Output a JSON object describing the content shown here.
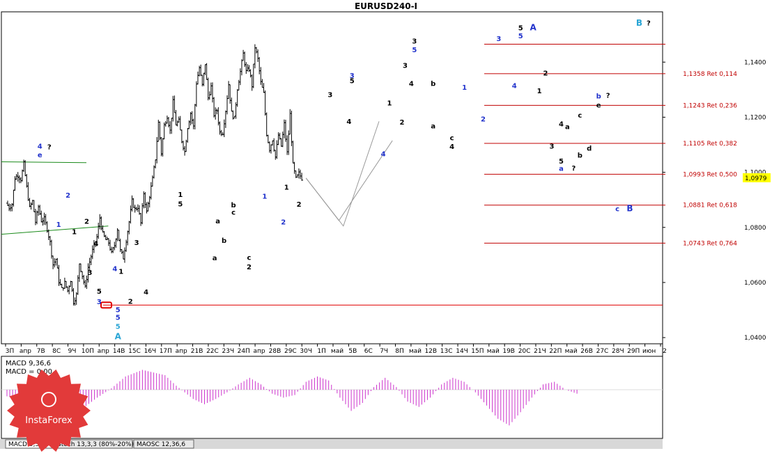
{
  "chart_data": {
    "type": "ohlc",
    "title": "EURUSD240-I",
    "price_axis": {
      "ticks": [
        "1,1400",
        "1,1200",
        "1,1000",
        "1,0800",
        "1,0600",
        "1,0400"
      ],
      "tick_values": [
        1.14,
        1.12,
        1.1,
        1.08,
        1.06,
        1.04
      ],
      "ylim": [
        1.038,
        1.158
      ],
      "current_price": "1,0979",
      "current_value": 1.0979
    },
    "time_axis": {
      "labels": [
        "3П",
        "апр",
        "7В",
        "8С",
        "9Ч",
        "10П",
        "апр",
        "14В",
        "15С",
        "16Ч",
        "17П",
        "апр",
        "21В",
        "22С",
        "23Ч",
        "24П",
        "апр",
        "28В",
        "29С",
        "30Ч",
        "1П",
        "май",
        "5В",
        "6С",
        "7Ч",
        "8П",
        "май",
        "12В",
        "13С",
        "14Ч",
        "15П",
        "май",
        "19В",
        "20С",
        "21Ч",
        "22П",
        "май",
        "26В",
        "27С",
        "28Ч",
        "29П",
        "июн",
        "2"
      ]
    },
    "price_path": [
      {
        "t": 0,
        "p": 1.0888
      },
      {
        "t": 1,
        "p": 1.0872
      },
      {
        "t": 2,
        "p": 1.0885
      },
      {
        "t": 3,
        "p": 1.098
      },
      {
        "t": 4,
        "p": 1.099
      },
      {
        "t": 5,
        "p": 1.0975
      },
      {
        "t": 6,
        "p": 1.103
      },
      {
        "t": 7,
        "p": 1.0945
      },
      {
        "t": 8,
        "p": 1.087
      },
      {
        "t": 9,
        "p": 1.0895
      },
      {
        "t": 10,
        "p": 1.082
      },
      {
        "t": 11,
        "p": 1.0875
      },
      {
        "t": 12,
        "p": 1.0825
      },
      {
        "t": 13,
        "p": 1.083
      },
      {
        "t": 14,
        "p": 1.0795
      },
      {
        "t": 15,
        "p": 1.0745
      },
      {
        "t": 16,
        "p": 1.0665
      },
      {
        "t": 17,
        "p": 1.0685
      },
      {
        "t": 18,
        "p": 1.0605
      },
      {
        "t": 19,
        "p": 1.0575
      },
      {
        "t": 20,
        "p": 1.0598
      },
      {
        "t": 21,
        "p": 1.057
      },
      {
        "t": 22,
        "p": 1.061
      },
      {
        "t": 23,
        "p": 1.053
      },
      {
        "t": 24,
        "p": 1.0555
      },
      {
        "t": 25,
        "p": 1.067
      },
      {
        "t": 26,
        "p": 1.0625
      },
      {
        "t": 27,
        "p": 1.058
      },
      {
        "t": 28,
        "p": 1.0655
      },
      {
        "t": 29,
        "p": 1.0695
      },
      {
        "t": 30,
        "p": 1.0735
      },
      {
        "t": 31,
        "p": 1.0765
      },
      {
        "t": 32,
        "p": 1.0835
      },
      {
        "t": 33,
        "p": 1.0775
      },
      {
        "t": 34,
        "p": 1.0755
      },
      {
        "t": 35,
        "p": 1.0745
      },
      {
        "t": 36,
        "p": 1.0705
      },
      {
        "t": 37,
        "p": 1.0735
      },
      {
        "t": 38,
        "p": 1.0795
      },
      {
        "t": 39,
        "p": 1.0715
      },
      {
        "t": 40,
        "p": 1.069
      },
      {
        "t": 41,
        "p": 1.0755
      },
      {
        "t": 42,
        "p": 1.082
      },
      {
        "t": 43,
        "p": 1.0895
      },
      {
        "t": 44,
        "p": 1.0865
      },
      {
        "t": 45,
        "p": 1.0875
      },
      {
        "t": 46,
        "p": 1.0815
      },
      {
        "t": 47,
        "p": 1.0925
      },
      {
        "t": 48,
        "p": 1.0855
      },
      {
        "t": 49,
        "p": 1.0915
      },
      {
        "t": 50,
        "p": 1.0975
      },
      {
        "t": 51,
        "p": 1.105
      },
      {
        "t": 52,
        "p": 1.118
      },
      {
        "t": 53,
        "p": 1.107
      },
      {
        "t": 54,
        "p": 1.117
      },
      {
        "t": 55,
        "p": 1.1205
      },
      {
        "t": 56,
        "p": 1.115
      },
      {
        "t": 57,
        "p": 1.1255
      },
      {
        "t": 58,
        "p": 1.1175
      },
      {
        "t": 59,
        "p": 1.1185
      },
      {
        "t": 60,
        "p": 1.1115
      },
      {
        "t": 61,
        "p": 1.1075
      },
      {
        "t": 62,
        "p": 1.1165
      },
      {
        "t": 63,
        "p": 1.1215
      },
      {
        "t": 64,
        "p": 1.1165
      },
      {
        "t": 65,
        "p": 1.1325
      },
      {
        "t": 66,
        "p": 1.138
      },
      {
        "t": 67,
        "p": 1.1315
      },
      {
        "t": 68,
        "p": 1.1395
      },
      {
        "t": 69,
        "p": 1.127
      },
      {
        "t": 70,
        "p": 1.131
      },
      {
        "t": 71,
        "p": 1.121
      },
      {
        "t": 72,
        "p": 1.1225
      },
      {
        "t": 73,
        "p": 1.1145
      },
      {
        "t": 74,
        "p": 1.1145
      },
      {
        "t": 75,
        "p": 1.1225
      },
      {
        "t": 76,
        "p": 1.132
      },
      {
        "t": 77,
        "p": 1.1215
      },
      {
        "t": 78,
        "p": 1.1195
      },
      {
        "t": 79,
        "p": 1.1305
      },
      {
        "t": 80,
        "p": 1.1365
      },
      {
        "t": 81,
        "p": 1.143
      },
      {
        "t": 82,
        "p": 1.1365
      },
      {
        "t": 83,
        "p": 1.1375
      },
      {
        "t": 84,
        "p": 1.1315
      },
      {
        "t": 85,
        "p": 1.1455
      },
      {
        "t": 86,
        "p": 1.141
      },
      {
        "t": 87,
        "p": 1.1325
      },
      {
        "t": 88,
        "p": 1.1285
      },
      {
        "t": 89,
        "p": 1.114
      },
      {
        "t": 90,
        "p": 1.1085
      },
      {
        "t": 91,
        "p": 1.112
      },
      {
        "t": 92,
        "p": 1.1055
      },
      {
        "t": 93,
        "p": 1.1135
      },
      {
        "t": 94,
        "p": 1.1095
      },
      {
        "t": 95,
        "p": 1.1175
      },
      {
        "t": 96,
        "p": 1.107
      },
      {
        "t": 97,
        "p": 1.121
      },
      {
        "t": 98,
        "p": 1.1025
      },
      {
        "t": 99,
        "p": 1.0975
      },
      {
        "t": 100,
        "p": 1.0995
      },
      {
        "t": 101,
        "p": 1.0979
      }
    ],
    "fib_levels": [
      {
        "label": "",
        "value": 1.1465
      },
      {
        "label": "1,1358 Ret 0,114",
        "value": 1.1358
      },
      {
        "label": "1,1243 Ret 0,236",
        "value": 1.1243
      },
      {
        "label": "1,1105 Ret 0,382",
        "value": 1.1105
      },
      {
        "label": "1,0993 Ret 0,500",
        "value": 1.0993
      },
      {
        "label": "1,0881 Ret 0,618",
        "value": 1.0881
      },
      {
        "label": "1,0743 Ret 0,764",
        "value": 1.0743
      }
    ],
    "support_level": 1.0518,
    "forecast_paths": [
      [
        {
          "t": 101,
          "p": 1.0979
        },
        {
          "t": 110,
          "p": 1.0805
        },
        {
          "t": 118,
          "p": 1.1185
        }
      ],
      [
        {
          "t": 101,
          "p": 1.0979
        },
        {
          "t": 109,
          "p": 1.0825
        },
        {
          "t": 121,
          "p": 1.1115
        }
      ]
    ],
    "trendlines": [
      {
        "color": "#1a8a1a",
        "points": [
          {
            "t": 0,
            "p": 1.1038
          },
          {
            "t": 25,
            "p": 1.1035
          }
        ]
      },
      {
        "color": "#1a8a1a",
        "points": [
          {
            "t": 0,
            "p": 1.0775
          },
          {
            "t": 32,
            "p": 1.0805
          }
        ]
      }
    ],
    "wave_labels": [
      {
        "text": "4",
        "t": 11,
        "p": 1.1086,
        "color": "#2233cc"
      },
      {
        "text": "e",
        "t": 11,
        "p": 1.1054,
        "color": "#2233cc"
      },
      {
        "text": "?",
        "t": 14,
        "p": 1.1084,
        "color": "#000000"
      },
      {
        "text": "2",
        "t": 20,
        "p": 1.0908,
        "color": "#2233cc"
      },
      {
        "text": "1",
        "t": 17,
        "p": 1.0802,
        "color": "#2233cc"
      },
      {
        "text": "2",
        "t": 26,
        "p": 1.0813,
        "color": "#000000"
      },
      {
        "text": "1",
        "t": 22,
        "p": 1.0775,
        "color": "#000000"
      },
      {
        "text": "4",
        "t": 29,
        "p": 1.0733,
        "color": "#000000"
      },
      {
        "text": "3",
        "t": 27,
        "p": 1.0628,
        "color": "#000000"
      },
      {
        "text": "5",
        "t": 30,
        "p": 1.0559,
        "color": "#000000"
      },
      {
        "text": "3",
        "t": 30,
        "p": 1.0522,
        "color": "#2233cc"
      },
      {
        "text": "4",
        "t": 35,
        "p": 1.0642,
        "color": "#2233cc"
      },
      {
        "text": "1",
        "t": 37,
        "p": 1.0632,
        "color": "#000000"
      },
      {
        "text": "5",
        "t": 36,
        "p": 1.0493,
        "color": "#2233cc"
      },
      {
        "text": "5",
        "t": 36,
        "p": 1.0465,
        "color": "#2233cc"
      },
      {
        "text": "5",
        "t": 36,
        "p": 1.0432,
        "color": "#29a5d5"
      },
      {
        "text": "A",
        "t": 36,
        "p": 1.0394,
        "color": "#29a5d5"
      },
      {
        "text": "2",
        "t": 40,
        "p": 1.0523,
        "color": "#000000"
      },
      {
        "text": "3",
        "t": 42,
        "p": 1.0736,
        "color": "#000000"
      },
      {
        "text": "4",
        "t": 45,
        "p": 1.0557,
        "color": "#000000"
      },
      {
        "text": "1",
        "t": 56,
        "p": 1.0911,
        "color": "#000000"
      },
      {
        "text": "5",
        "t": 56,
        "p": 1.0876,
        "color": "#000000"
      },
      {
        "text": "a",
        "t": 68,
        "p": 1.0815,
        "color": "#000000"
      },
      {
        "text": "b",
        "t": 73,
        "p": 1.0873,
        "color": "#000000"
      },
      {
        "text": "c",
        "t": 73,
        "p": 1.0846,
        "color": "#000000"
      },
      {
        "text": "b",
        "t": 70,
        "p": 1.0744,
        "color": "#000000"
      },
      {
        "text": "a",
        "t": 67,
        "p": 1.0681,
        "color": "#000000"
      },
      {
        "text": "c",
        "t": 78,
        "p": 1.0682,
        "color": "#000000"
      },
      {
        "text": "2",
        "t": 78,
        "p": 1.0648,
        "color": "#000000"
      },
      {
        "text": "1",
        "t": 83,
        "p": 1.0904,
        "color": "#2233cc"
      },
      {
        "text": "2",
        "t": 89,
        "p": 1.0811,
        "color": "#2233cc"
      },
      {
        "text": "1",
        "t": 90,
        "p": 1.0937,
        "color": "#000000"
      },
      {
        "text": "2",
        "t": 94,
        "p": 1.0875,
        "color": "#000000"
      },
      {
        "text": "3",
        "t": 104,
        "p": 1.1273,
        "color": "#000000"
      },
      {
        "text": "4",
        "t": 110,
        "p": 1.1176,
        "color": "#000000"
      },
      {
        "text": "3",
        "t": 111,
        "p": 1.1343,
        "color": "#2233cc"
      },
      {
        "text": "5",
        "t": 111,
        "p": 1.1323,
        "color": "#000000"
      },
      {
        "text": "4",
        "t": 121,
        "p": 1.1058,
        "color": "#2233cc"
      },
      {
        "text": "1",
        "t": 123,
        "p": 1.1243,
        "color": "#000000"
      },
      {
        "text": "2",
        "t": 127,
        "p": 1.1173,
        "color": "#000000"
      },
      {
        "text": "3",
        "t": 131,
        "p": 1.1467,
        "color": "#000000"
      },
      {
        "text": "5",
        "t": 131,
        "p": 1.1436,
        "color": "#2233cc"
      },
      {
        "text": "3",
        "t": 128,
        "p": 1.1379,
        "color": "#000000"
      },
      {
        "text": "4",
        "t": 130,
        "p": 1.1313,
        "color": "#000000"
      },
      {
        "text": "b",
        "t": 137,
        "p": 1.1313,
        "color": "#000000"
      },
      {
        "text": "a",
        "t": 137,
        "p": 1.116,
        "color": "#000000"
      },
      {
        "text": "c",
        "t": 143,
        "p": 1.1116,
        "color": "#000000"
      },
      {
        "text": "4",
        "t": 143,
        "p": 1.1085,
        "color": "#000000"
      },
      {
        "text": "1",
        "t": 147,
        "p": 1.13,
        "color": "#2233cc"
      },
      {
        "text": "2",
        "t": 153,
        "p": 1.1185,
        "color": "#2233cc"
      },
      {
        "text": "3",
        "t": 158,
        "p": 1.1477,
        "color": "#2233cc"
      },
      {
        "text": "5",
        "t": 165,
        "p": 1.1516,
        "color": "#000000"
      },
      {
        "text": "A",
        "t": 169,
        "p": 1.1515,
        "color": "#2233cc"
      },
      {
        "text": "5",
        "t": 165,
        "p": 1.1486,
        "color": "#2233cc"
      },
      {
        "text": "4",
        "t": 163,
        "p": 1.1306,
        "color": "#2233cc"
      },
      {
        "text": "2",
        "t": 173,
        "p": 1.1351,
        "color": "#000000"
      },
      {
        "text": "1",
        "t": 171,
        "p": 1.1287,
        "color": "#000000"
      },
      {
        "text": "b",
        "t": 190,
        "p": 1.1268,
        "color": "#2233cc"
      },
      {
        "text": "?",
        "t": 193,
        "p": 1.127,
        "color": "#000000"
      },
      {
        "text": "e",
        "t": 190,
        "p": 1.1235,
        "color": "#000000"
      },
      {
        "text": "c",
        "t": 184,
        "p": 1.1198,
        "color": "#000000"
      },
      {
        "text": "4",
        "t": 178,
        "p": 1.1167,
        "color": "#000000"
      },
      {
        "text": "a",
        "t": 180,
        "p": 1.1157,
        "color": "#000000"
      },
      {
        "text": "3",
        "t": 175,
        "p": 1.1086,
        "color": "#000000"
      },
      {
        "text": "b",
        "t": 184,
        "p": 1.1053,
        "color": "#000000"
      },
      {
        "text": "d",
        "t": 187,
        "p": 1.1079,
        "color": "#000000"
      },
      {
        "text": "5",
        "t": 178,
        "p": 1.1032,
        "color": "#000000"
      },
      {
        "text": "a",
        "t": 178,
        "p": 1.1005,
        "color": "#2233cc"
      },
      {
        "text": "?",
        "t": 182,
        "p": 1.1007,
        "color": "#000000"
      },
      {
        "text": "c",
        "t": 196,
        "p": 1.0859,
        "color": "#2233cc"
      },
      {
        "text": "B",
        "t": 200,
        "p": 1.0859,
        "color": "#2233cc"
      },
      {
        "text": "B",
        "t": 203,
        "p": 1.1532,
        "color": "#29a5d5"
      },
      {
        "text": "?",
        "t": 206,
        "p": 1.1533,
        "color": "#000000"
      }
    ],
    "indicator": {
      "name": "MACD 9,36,6",
      "macd_label": "MACD 9,36,6",
      "value_label": "MACD = 0,00",
      "zero_line": true,
      "histogram_envelope": [
        {
          "t": 0,
          "v": -0.25
        },
        {
          "t": 10,
          "v": -0.55
        },
        {
          "t": 18,
          "v": -0.9
        },
        {
          "t": 25,
          "v": -0.85
        },
        {
          "t": 32,
          "v": -0.3
        },
        {
          "t": 37,
          "v": 0.05
        },
        {
          "t": 42,
          "v": 0.5
        },
        {
          "t": 48,
          "v": 0.75
        },
        {
          "t": 56,
          "v": 0.55
        },
        {
          "t": 60,
          "v": 0.15
        },
        {
          "t": 66,
          "v": -0.35
        },
        {
          "t": 70,
          "v": -0.55
        },
        {
          "t": 74,
          "v": -0.35
        },
        {
          "t": 78,
          "v": -0.1
        },
        {
          "t": 82,
          "v": 0.2
        },
        {
          "t": 86,
          "v": 0.45
        },
        {
          "t": 90,
          "v": 0.2
        },
        {
          "t": 94,
          "v": -0.15
        },
        {
          "t": 98,
          "v": -0.3
        },
        {
          "t": 102,
          "v": -0.2
        },
        {
          "t": 106,
          "v": 0.3
        },
        {
          "t": 110,
          "v": 0.5
        },
        {
          "t": 114,
          "v": 0.35
        },
        {
          "t": 118,
          "v": -0.3
        },
        {
          "t": 122,
          "v": -0.8
        },
        {
          "t": 126,
          "v": -0.5
        },
        {
          "t": 130,
          "v": 0.1
        },
        {
          "t": 134,
          "v": 0.45
        },
        {
          "t": 138,
          "v": 0.1
        },
        {
          "t": 142,
          "v": -0.45
        },
        {
          "t": 146,
          "v": -0.65
        },
        {
          "t": 150,
          "v": -0.3
        },
        {
          "t": 154,
          "v": 0.2
        },
        {
          "t": 158,
          "v": 0.45
        },
        {
          "t": 162,
          "v": 0.3
        },
        {
          "t": 166,
          "v": -0.1
        },
        {
          "t": 170,
          "v": -0.6
        },
        {
          "t": 174,
          "v": -1.1
        },
        {
          "t": 178,
          "v": -1.35
        },
        {
          "t": 182,
          "v": -0.85
        },
        {
          "t": 186,
          "v": -0.3
        },
        {
          "t": 190,
          "v": 0.2
        },
        {
          "t": 194,
          "v": 0.3
        },
        {
          "t": 198,
          "v": 0.0
        },
        {
          "t": 202,
          "v": -0.15
        }
      ]
    },
    "tabs": [
      "MACD 9,36,6",
      "Stoch 13,3,3 (80%-20%)",
      "MAOSC 12,36,6"
    ]
  },
  "colors": {
    "bars": "#000000",
    "fib": "#c00000",
    "support": "#e00000",
    "trend": "#1a8a1a",
    "forecast": "#999999",
    "histogram": "#cc33cc",
    "current_price_bg": "#ffff00",
    "logo": "#e23a3a"
  },
  "logo": {
    "text": "InstaForex"
  }
}
